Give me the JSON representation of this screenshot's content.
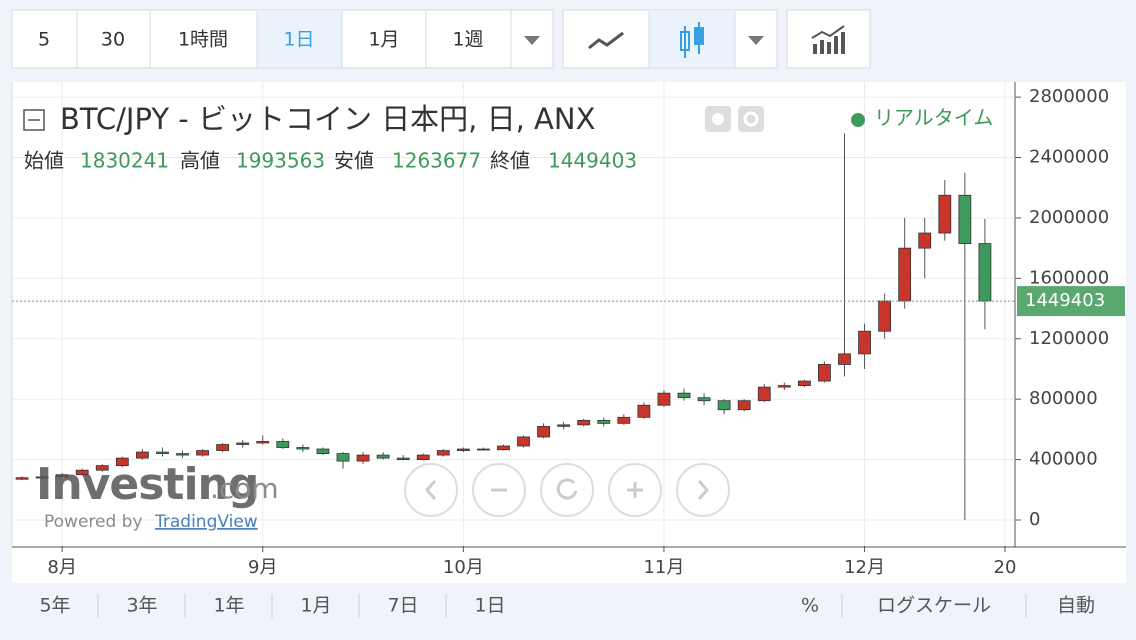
{
  "toolbar": {
    "intervals": [
      "5",
      "30",
      "1時間",
      "1日",
      "1月",
      "1週"
    ]
  },
  "chart_data": {
    "type": "candlestick",
    "title": "BTC/JPY - ビットコイン 日本円, 日, ANX",
    "status": "リアルタイム",
    "ohlc_labels": [
      "始値",
      "高値",
      "安値",
      "終値"
    ],
    "categories": [
      null,
      null,
      "8月",
      null,
      null,
      null,
      null,
      null,
      null,
      null,
      null,
      null,
      "9月",
      null,
      null,
      null,
      null,
      null,
      null,
      null,
      null,
      null,
      "10月",
      null,
      null,
      null,
      null,
      null,
      null,
      null,
      null,
      null,
      "11月",
      null,
      null,
      null,
      null,
      null,
      null,
      null,
      null,
      null,
      "12月",
      null,
      null,
      null,
      null,
      null,
      null,
      "20"
    ],
    "open": [
      270000,
      280000,
      285000,
      300000,
      330000,
      360000,
      410000,
      450000,
      440000,
      430000,
      460000,
      500000,
      510000,
      520000,
      480000,
      470000,
      440000,
      390000,
      430000,
      410000,
      400000,
      430000,
      460000,
      470000,
      465000,
      490000,
      550000,
      620000,
      630000,
      660000,
      640000,
      680000,
      760000,
      840000,
      810000,
      790000,
      730000,
      790000,
      880000,
      890000,
      920000,
      1030000,
      1100000,
      1250000,
      1450000,
      1800000,
      1900000,
      2150000,
      1830241,
      null
    ],
    "high": [
      290000,
      300000,
      310000,
      340000,
      370000,
      420000,
      470000,
      480000,
      460000,
      470000,
      510000,
      530000,
      560000,
      540000,
      500000,
      480000,
      450000,
      450000,
      450000,
      430000,
      440000,
      470000,
      480000,
      480000,
      500000,
      560000,
      640000,
      650000,
      670000,
      680000,
      700000,
      780000,
      860000,
      870000,
      840000,
      800000,
      800000,
      900000,
      910000,
      930000,
      1050000,
      2560000,
      1300000,
      1500000,
      2000000,
      2000000,
      2250000,
      2300000,
      1993563,
      null
    ],
    "low": [
      265000,
      270000,
      280000,
      295000,
      320000,
      350000,
      400000,
      420000,
      410000,
      420000,
      450000,
      480000,
      500000,
      470000,
      450000,
      430000,
      340000,
      370000,
      400000,
      395000,
      395000,
      420000,
      450000,
      460000,
      460000,
      480000,
      540000,
      600000,
      620000,
      620000,
      630000,
      670000,
      750000,
      790000,
      760000,
      700000,
      720000,
      780000,
      860000,
      880000,
      910000,
      950000,
      1000000,
      1200000,
      1400000,
      1600000,
      1850000,
      0,
      1263677,
      null
    ],
    "close": [
      280000,
      285000,
      300000,
      330000,
      360000,
      410000,
      450000,
      440000,
      430000,
      460000,
      500000,
      510000,
      520000,
      480000,
      470000,
      440000,
      390000,
      430000,
      410000,
      400000,
      430000,
      460000,
      470000,
      465000,
      490000,
      550000,
      620000,
      630000,
      660000,
      640000,
      680000,
      760000,
      840000,
      810000,
      790000,
      730000,
      790000,
      880000,
      890000,
      920000,
      1030000,
      1100000,
      1250000,
      1450000,
      1800000,
      1900000,
      2150000,
      1830241,
      1449403,
      null
    ],
    "up_color": "#c9352b",
    "down_color": "#3e9a5c",
    "last_price_color": "#5aa870",
    "ylim": [
      -172000,
      2900000
    ],
    "yticks": [
      0,
      400000,
      800000,
      1200000,
      1600000,
      2000000,
      2400000,
      2800000
    ],
    "grid": true
  },
  "branding": {
    "logo": "Investing",
    "logo_suffix": ".com",
    "powered_by": "Powered by",
    "provider": "TradingView"
  },
  "footer": {
    "ranges": [
      "5年",
      "3年",
      "1年",
      "1月",
      "7日",
      "1日"
    ],
    "percent": "%",
    "log_scale": "ログスケール",
    "auto": "自動"
  }
}
